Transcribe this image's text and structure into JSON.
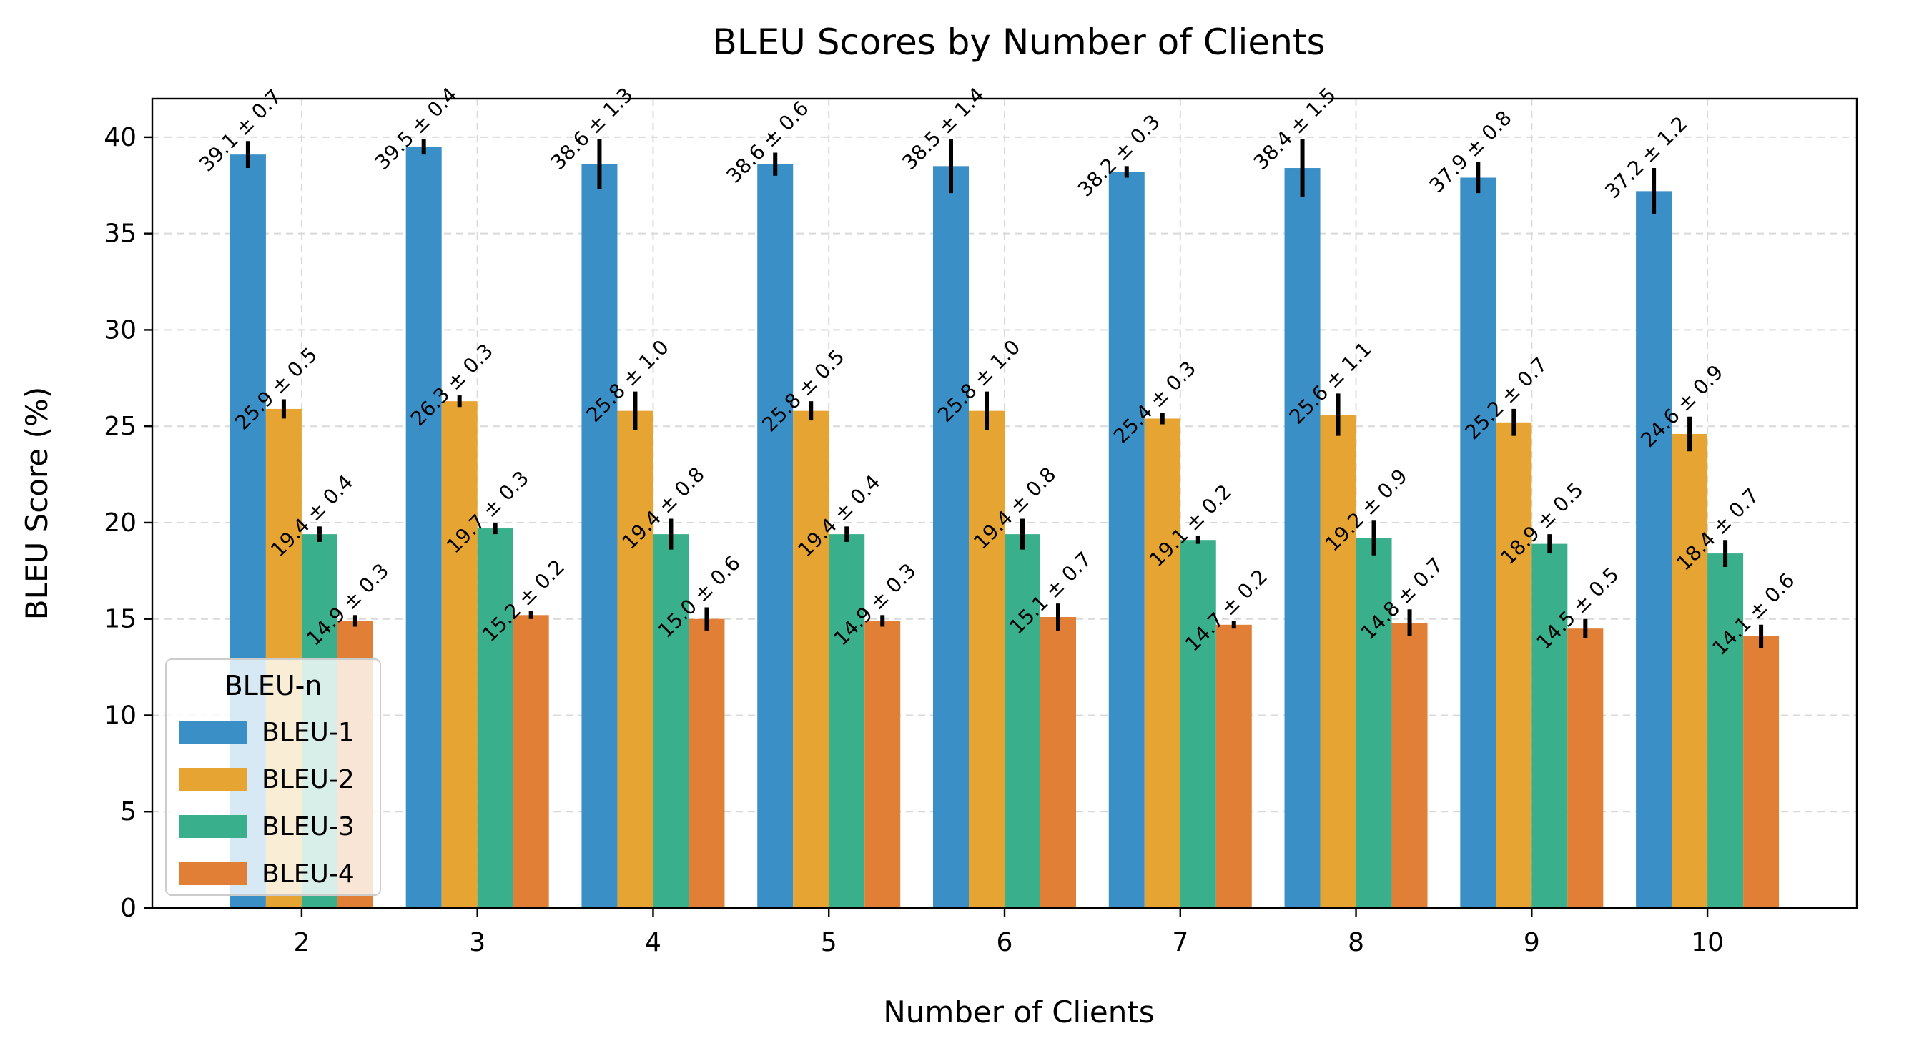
{
  "chart_data": {
    "type": "bar",
    "title": "BLEU Scores by Number of Clients",
    "xlabel": "Number of Clients",
    "ylabel": "BLEU Score (%)",
    "categories": [
      "2",
      "3",
      "4",
      "5",
      "6",
      "7",
      "8",
      "9",
      "10"
    ],
    "ylim": [
      0,
      42
    ],
    "yticks": [
      0,
      5,
      10,
      15,
      20,
      25,
      30,
      35,
      40
    ],
    "grid": true,
    "legend": {
      "title": "BLEU-n",
      "placement": "lower-left"
    },
    "series": [
      {
        "name": "BLEU-1",
        "color": "#3a8fc7",
        "values": [
          39.1,
          39.5,
          38.6,
          38.6,
          38.5,
          38.2,
          38.4,
          37.9,
          37.2
        ],
        "errors": [
          0.7,
          0.4,
          1.3,
          0.6,
          1.4,
          0.3,
          1.5,
          0.8,
          1.2
        ],
        "labels": [
          "39.1 ± 0.7",
          "39.5 ± 0.4",
          "38.6 ± 1.3",
          "38.6 ± 0.6",
          "38.5 ± 1.4",
          "38.2 ± 0.3",
          "38.4 ± 1.5",
          "37.9 ± 0.8",
          "37.2 ± 1.2"
        ]
      },
      {
        "name": "BLEU-2",
        "color": "#e6a433",
        "values": [
          25.9,
          26.3,
          25.8,
          25.8,
          25.8,
          25.4,
          25.6,
          25.2,
          24.6
        ],
        "errors": [
          0.5,
          0.3,
          1.0,
          0.5,
          1.0,
          0.3,
          1.1,
          0.7,
          0.9
        ],
        "labels": [
          "25.9 ± 0.5",
          "26.3 ± 0.3",
          "25.8 ± 1.0",
          "25.8 ± 0.5",
          "25.8 ± 1.0",
          "25.4 ± 0.3",
          "25.6 ± 1.1",
          "25.2 ± 0.7",
          "24.6 ± 0.9"
        ]
      },
      {
        "name": "BLEU-3",
        "color": "#3aaf8b",
        "values": [
          19.4,
          19.7,
          19.4,
          19.4,
          19.4,
          19.1,
          19.2,
          18.9,
          18.4
        ],
        "errors": [
          0.4,
          0.3,
          0.8,
          0.4,
          0.8,
          0.2,
          0.9,
          0.5,
          0.7
        ],
        "labels": [
          "19.4 ± 0.4",
          "19.7 ± 0.3",
          "19.4 ± 0.8",
          "19.4 ± 0.4",
          "19.4 ± 0.8",
          "19.1 ± 0.2",
          "19.2 ± 0.9",
          "18.9 ± 0.5",
          "18.4 ± 0.7"
        ]
      },
      {
        "name": "BLEU-4",
        "color": "#e17f36",
        "values": [
          14.9,
          15.2,
          15.0,
          14.9,
          15.1,
          14.7,
          14.8,
          14.5,
          14.1
        ],
        "errors": [
          0.3,
          0.2,
          0.6,
          0.3,
          0.7,
          0.2,
          0.7,
          0.5,
          0.6
        ],
        "labels": [
          "14.9 ± 0.3",
          "15.2 ± 0.2",
          "15.0 ± 0.6",
          "14.9 ± 0.3",
          "15.1 ± 0.7",
          "14.7 ± 0.2",
          "14.8 ± 0.7",
          "14.5 ± 0.5",
          "14.1 ± 0.6"
        ]
      }
    ]
  }
}
